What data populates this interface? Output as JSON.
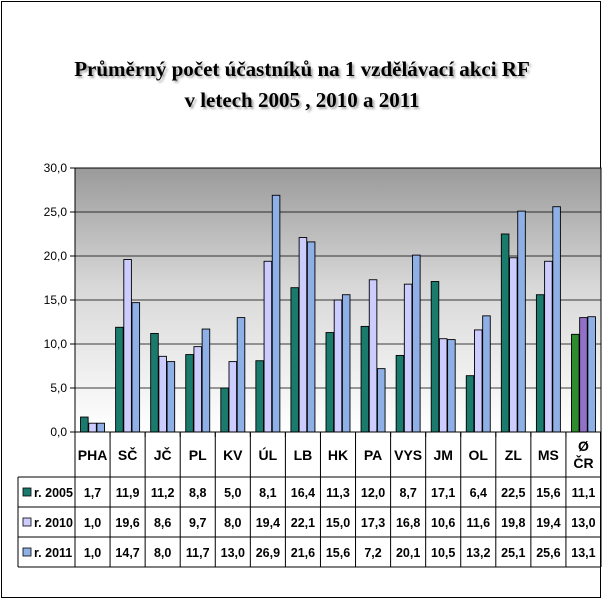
{
  "chart_data": {
    "type": "bar",
    "title": "Průměrný počet účastníků na 1 vzdělávací akci RF",
    "subtitle": "v letech 2005 , 2010 a 2011",
    "categories": [
      "PHA",
      "SČ",
      "JČ",
      "PL",
      "KV",
      "ÚL",
      "LB",
      "HK",
      "PA",
      "VYS",
      "JM",
      "OL",
      "ZL",
      "MS",
      "Ø ČR"
    ],
    "series": [
      {
        "name": "r. 2005",
        "color": "#1a7a6c",
        "values": [
          1.7,
          11.9,
          11.2,
          8.8,
          5.0,
          8.1,
          16.4,
          11.3,
          12.0,
          8.7,
          17.1,
          6.4,
          22.5,
          15.6,
          11.1
        ]
      },
      {
        "name": "r. 2010",
        "color": "#ccccff",
        "values": [
          1.0,
          19.6,
          8.6,
          9.7,
          8.0,
          19.4,
          22.1,
          15.0,
          17.3,
          16.8,
          10.6,
          11.6,
          19.8,
          19.4,
          13.0
        ]
      },
      {
        "name": "r. 2011",
        "color": "#8fb0e6",
        "values": [
          1.0,
          14.7,
          8.0,
          11.7,
          13.0,
          26.9,
          21.6,
          15.6,
          7.2,
          20.1,
          10.5,
          13.2,
          25.1,
          25.6,
          13.1
        ]
      }
    ],
    "highlight": {
      "category": "Ø ČR",
      "colors": [
        "#2e8b2e",
        "#9370c8",
        "#8fb0e6"
      ]
    },
    "ylim": [
      0,
      30
    ],
    "yticks": [
      "0,0",
      "5,0",
      "10,0",
      "15,0",
      "20,0",
      "25,0",
      "30,0"
    ],
    "grid": true,
    "legend": "data-table-left",
    "table": {
      "rows": [
        {
          "label": "r. 2005",
          "cells": [
            "1,7",
            "11,9",
            "11,2",
            "8,8",
            "5,0",
            "8,1",
            "16,4",
            "11,3",
            "12,0",
            "8,7",
            "17,1",
            "6,4",
            "22,5",
            "15,6",
            "11,1"
          ]
        },
        {
          "label": "r. 2010",
          "cells": [
            "1,0",
            "19,6",
            "8,6",
            "9,7",
            "8,0",
            "19,4",
            "22,1",
            "15,0",
            "17,3",
            "16,8",
            "10,6",
            "11,6",
            "19,8",
            "19,4",
            "13,0"
          ]
        },
        {
          "label": "r. 2011",
          "cells": [
            "1,0",
            "14,7",
            "8,0",
            "11,7",
            "13,0",
            "26,9",
            "21,6",
            "15,6",
            "7,2",
            "20,1",
            "10,5",
            "13,2",
            "25,1",
            "25,6",
            "13,1"
          ]
        }
      ]
    }
  }
}
